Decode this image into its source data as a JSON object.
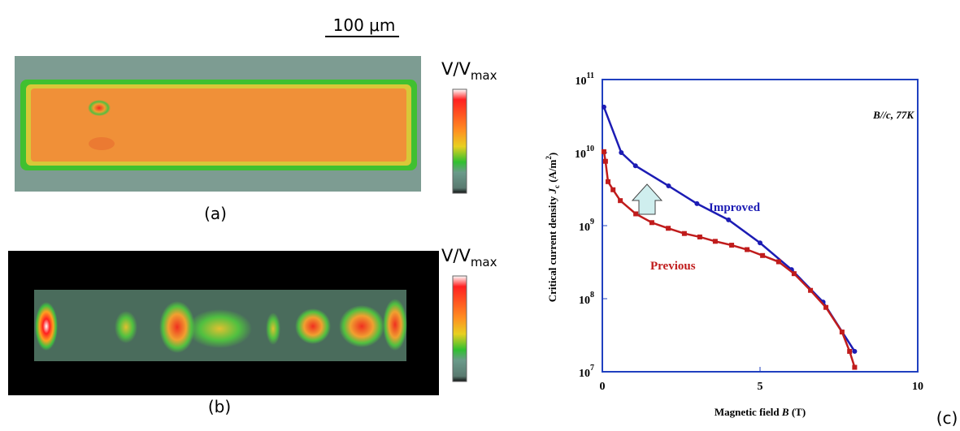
{
  "scale_bar": "100 μm",
  "panels": [
    {
      "label": "(a)",
      "colorbar_label": "V/V",
      "colorbar_sub": "max"
    },
    {
      "label": "(b)",
      "colorbar_label": "V/V",
      "colorbar_sub": "max"
    }
  ],
  "chart_data": {
    "type": "line",
    "panel_label": "(c)",
    "annotation": "B//c, 77K",
    "xlabel": [
      "Magnetic field  ",
      "B",
      " (T)"
    ],
    "ylabel": [
      "Critical current density  ",
      "J",
      "c",
      " (A/m",
      "2",
      ")"
    ],
    "xlim": [
      0,
      10
    ],
    "xticks": [
      0,
      5,
      10
    ],
    "ylim": [
      10000000,
      100000000000
    ],
    "log_y": true,
    "yticks": [
      {
        "value": 10000000,
        "label": "10",
        "exponent": "7"
      },
      {
        "value": 100000000,
        "label": "10",
        "exponent": "8"
      },
      {
        "value": 1000000000,
        "label": "10",
        "exponent": "9"
      },
      {
        "value": 10000000000,
        "label": "10",
        "exponent": "10"
      },
      {
        "value": 100000000000,
        "label": "10",
        "exponent": "11"
      }
    ],
    "series": [
      {
        "name": "Improved",
        "color": "#1c1cb4",
        "x": [
          0.05,
          0.6,
          1.05,
          2.1,
          3.0,
          4.0,
          5.0,
          6.0,
          7.0,
          8.0
        ],
        "values": [
          42000000000,
          10000000000,
          6600000000,
          3500000000,
          2000000000,
          1200000000,
          580000000,
          250000000,
          90000000,
          19000000
        ]
      },
      {
        "name": "Previous",
        "color": "#c01c1c",
        "x": [
          0.05,
          0.1,
          0.18,
          0.34,
          0.57,
          1.06,
          1.57,
          2.09,
          2.6,
          3.09,
          3.58,
          4.1,
          4.59,
          5.08,
          5.59,
          6.08,
          6.6,
          7.09,
          7.6,
          7.84,
          8.0
        ],
        "values": [
          10300000000,
          7600000000,
          4000000000,
          3100000000,
          2200000000,
          1450000000,
          1100000000,
          920000000,
          780000000,
          700000000,
          610000000,
          540000000,
          470000000,
          390000000,
          320000000,
          220000000,
          130000000,
          76000000,
          35000000,
          19000000,
          11500000
        ]
      }
    ]
  }
}
